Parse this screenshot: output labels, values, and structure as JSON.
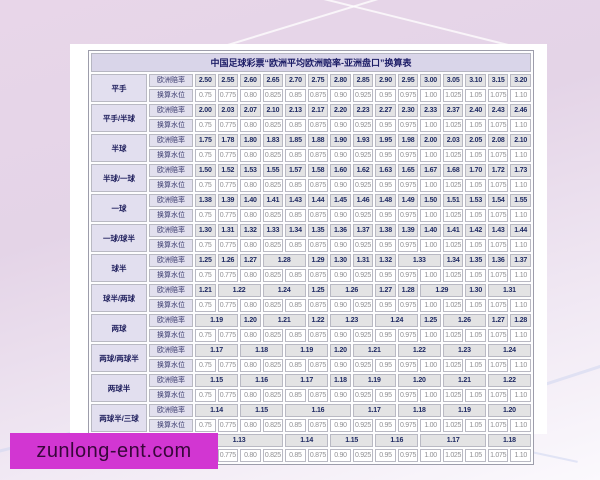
{
  "page": {
    "watermark": "zunlong-ent.com",
    "watermark_bg": "#d236d2",
    "background_tint": "#e6d6e8"
  },
  "table": {
    "title": "中国足球彩票“欧洲平均欧洲赔率-亚洲盘口”换算表",
    "row_labels": {
      "odds": "欧洲赔率",
      "water": "换算水位"
    },
    "water_values": [
      "0.75",
      "0.775",
      "0.80",
      "0.825",
      "0.85",
      "0.875",
      "0.90",
      "0.925",
      "0.95",
      "0.975",
      "1.00",
      "1.025",
      "1.05",
      "1.075",
      "1.10"
    ],
    "groups": [
      {
        "label": "平手",
        "odds": [
          {
            "v": "2.50",
            "s": 1
          },
          {
            "v": "2.55",
            "s": 1
          },
          {
            "v": "2.60",
            "s": 1
          },
          {
            "v": "2.65",
            "s": 1
          },
          {
            "v": "2.70",
            "s": 1
          },
          {
            "v": "2.75",
            "s": 1
          },
          {
            "v": "2.80",
            "s": 1
          },
          {
            "v": "2.85",
            "s": 1
          },
          {
            "v": "2.90",
            "s": 1
          },
          {
            "v": "2.95",
            "s": 1
          },
          {
            "v": "3.00",
            "s": 1
          },
          {
            "v": "3.05",
            "s": 1
          },
          {
            "v": "3.10",
            "s": 1
          },
          {
            "v": "3.15",
            "s": 1
          },
          {
            "v": "3.20",
            "s": 1
          }
        ]
      },
      {
        "label": "平手/半球",
        "odds": [
          {
            "v": "2.00",
            "s": 1
          },
          {
            "v": "2.03",
            "s": 1
          },
          {
            "v": "2.07",
            "s": 1
          },
          {
            "v": "2.10",
            "s": 1
          },
          {
            "v": "2.13",
            "s": 1
          },
          {
            "v": "2.17",
            "s": 1
          },
          {
            "v": "2.20",
            "s": 1
          },
          {
            "v": "2.23",
            "s": 1
          },
          {
            "v": "2.27",
            "s": 1
          },
          {
            "v": "2.30",
            "s": 1
          },
          {
            "v": "2.33",
            "s": 1
          },
          {
            "v": "2.37",
            "s": 1
          },
          {
            "v": "2.40",
            "s": 1
          },
          {
            "v": "2.43",
            "s": 1
          },
          {
            "v": "2.46",
            "s": 1
          }
        ]
      },
      {
        "label": "半球",
        "odds": [
          {
            "v": "1.75",
            "s": 1
          },
          {
            "v": "1.78",
            "s": 1
          },
          {
            "v": "1.80",
            "s": 1
          },
          {
            "v": "1.83",
            "s": 1
          },
          {
            "v": "1.85",
            "s": 1
          },
          {
            "v": "1.88",
            "s": 1
          },
          {
            "v": "1.90",
            "s": 1
          },
          {
            "v": "1.93",
            "s": 1
          },
          {
            "v": "1.95",
            "s": 1
          },
          {
            "v": "1.98",
            "s": 1
          },
          {
            "v": "2.00",
            "s": 1
          },
          {
            "v": "2.03",
            "s": 1
          },
          {
            "v": "2.05",
            "s": 1
          },
          {
            "v": "2.08",
            "s": 1
          },
          {
            "v": "2.10",
            "s": 1
          }
        ]
      },
      {
        "label": "半球/一球",
        "odds": [
          {
            "v": "1.50",
            "s": 1
          },
          {
            "v": "1.52",
            "s": 1
          },
          {
            "v": "1.53",
            "s": 1
          },
          {
            "v": "1.55",
            "s": 1
          },
          {
            "v": "1.57",
            "s": 1
          },
          {
            "v": "1.58",
            "s": 1
          },
          {
            "v": "1.60",
            "s": 1
          },
          {
            "v": "1.62",
            "s": 1
          },
          {
            "v": "1.63",
            "s": 1
          },
          {
            "v": "1.65",
            "s": 1
          },
          {
            "v": "1.67",
            "s": 1
          },
          {
            "v": "1.68",
            "s": 1
          },
          {
            "v": "1.70",
            "s": 1
          },
          {
            "v": "1.72",
            "s": 1
          },
          {
            "v": "1.73",
            "s": 1
          }
        ]
      },
      {
        "label": "一球",
        "odds": [
          {
            "v": "1.38",
            "s": 1
          },
          {
            "v": "1.39",
            "s": 1
          },
          {
            "v": "1.40",
            "s": 1
          },
          {
            "v": "1.41",
            "s": 1
          },
          {
            "v": "1.43",
            "s": 1
          },
          {
            "v": "1.44",
            "s": 1
          },
          {
            "v": "1.45",
            "s": 1
          },
          {
            "v": "1.46",
            "s": 1
          },
          {
            "v": "1.48",
            "s": 1
          },
          {
            "v": "1.49",
            "s": 1
          },
          {
            "v": "1.50",
            "s": 1
          },
          {
            "v": "1.51",
            "s": 1
          },
          {
            "v": "1.53",
            "s": 1
          },
          {
            "v": "1.54",
            "s": 1
          },
          {
            "v": "1.55",
            "s": 1
          }
        ]
      },
      {
        "label": "一球/球半",
        "odds": [
          {
            "v": "1.30",
            "s": 1
          },
          {
            "v": "1.31",
            "s": 1
          },
          {
            "v": "1.32",
            "s": 1
          },
          {
            "v": "1.33",
            "s": 1
          },
          {
            "v": "1.34",
            "s": 1
          },
          {
            "v": "1.35",
            "s": 1
          },
          {
            "v": "1.36",
            "s": 1
          },
          {
            "v": "1.37",
            "s": 1
          },
          {
            "v": "1.38",
            "s": 1
          },
          {
            "v": "1.39",
            "s": 1
          },
          {
            "v": "1.40",
            "s": 1
          },
          {
            "v": "1.41",
            "s": 1
          },
          {
            "v": "1.42",
            "s": 1
          },
          {
            "v": "1.43",
            "s": 1
          },
          {
            "v": "1.44",
            "s": 1
          }
        ]
      },
      {
        "label": "球半",
        "odds": [
          {
            "v": "1.25",
            "s": 1
          },
          {
            "v": "1.26",
            "s": 1
          },
          {
            "v": "1.27",
            "s": 1
          },
          {
            "v": "1.28",
            "s": 2
          },
          {
            "v": "1.29",
            "s": 1
          },
          {
            "v": "1.30",
            "s": 1
          },
          {
            "v": "1.31",
            "s": 1
          },
          {
            "v": "1.32",
            "s": 1
          },
          {
            "v": "1.33",
            "s": 2
          },
          {
            "v": "1.34",
            "s": 1
          },
          {
            "v": "1.35",
            "s": 1
          },
          {
            "v": "1.36",
            "s": 1
          },
          {
            "v": "1.37",
            "s": 1
          }
        ]
      },
      {
        "label": "球半/两球",
        "odds": [
          {
            "v": "1.21",
            "s": 1
          },
          {
            "v": "1.22",
            "s": 2
          },
          {
            "v": "1.24",
            "s": 2
          },
          {
            "v": "1.25",
            "s": 1
          },
          {
            "v": "1.26",
            "s": 2
          },
          {
            "v": "1.27",
            "s": 1
          },
          {
            "v": "1.28",
            "s": 1
          },
          {
            "v": "1.29",
            "s": 2
          },
          {
            "v": "1.30",
            "s": 1
          },
          {
            "v": "1.31",
            "s": 2
          }
        ]
      },
      {
        "label": "两球",
        "odds": [
          {
            "v": "1.19",
            "s": 2
          },
          {
            "v": "1.20",
            "s": 1
          },
          {
            "v": "1.21",
            "s": 2
          },
          {
            "v": "1.22",
            "s": 1
          },
          {
            "v": "1.23",
            "s": 2
          },
          {
            "v": "1.24",
            "s": 2
          },
          {
            "v": "1.25",
            "s": 1
          },
          {
            "v": "1.26",
            "s": 2
          },
          {
            "v": "1.27",
            "s": 1
          },
          {
            "v": "1.28",
            "s": 1
          }
        ]
      },
      {
        "label": "两球/两球半",
        "odds": [
          {
            "v": "1.17",
            "s": 2
          },
          {
            "v": "1.18",
            "s": 2
          },
          {
            "v": "1.19",
            "s": 2
          },
          {
            "v": "1.20",
            "s": 1
          },
          {
            "v": "1.21",
            "s": 2
          },
          {
            "v": "1.22",
            "s": 2
          },
          {
            "v": "1.23",
            "s": 2
          },
          {
            "v": "1.24",
            "s": 2
          }
        ]
      },
      {
        "label": "两球半",
        "odds": [
          {
            "v": "1.15",
            "s": 2
          },
          {
            "v": "1.16",
            "s": 2
          },
          {
            "v": "1.17",
            "s": 2
          },
          {
            "v": "1.18",
            "s": 1
          },
          {
            "v": "1.19",
            "s": 2
          },
          {
            "v": "1.20",
            "s": 2
          },
          {
            "v": "1.21",
            "s": 2
          },
          {
            "v": "1.22",
            "s": 2
          }
        ]
      },
      {
        "label": "两球半/三球",
        "odds": [
          {
            "v": "1.14",
            "s": 2
          },
          {
            "v": "1.15",
            "s": 2
          },
          {
            "v": "1.16",
            "s": 3
          },
          {
            "v": "1.17",
            "s": 2
          },
          {
            "v": "1.18",
            "s": 2
          },
          {
            "v": "1.19",
            "s": 2
          },
          {
            "v": "1.20",
            "s": 2
          }
        ]
      },
      {
        "label": "三球",
        "odds": [
          {
            "v": "1.13",
            "s": 4
          },
          {
            "v": "1.14",
            "s": 2
          },
          {
            "v": "1.15",
            "s": 2
          },
          {
            "v": "1.16",
            "s": 2
          },
          {
            "v": "1.17",
            "s": 3
          },
          {
            "v": "1.18",
            "s": 2
          }
        ]
      }
    ]
  }
}
